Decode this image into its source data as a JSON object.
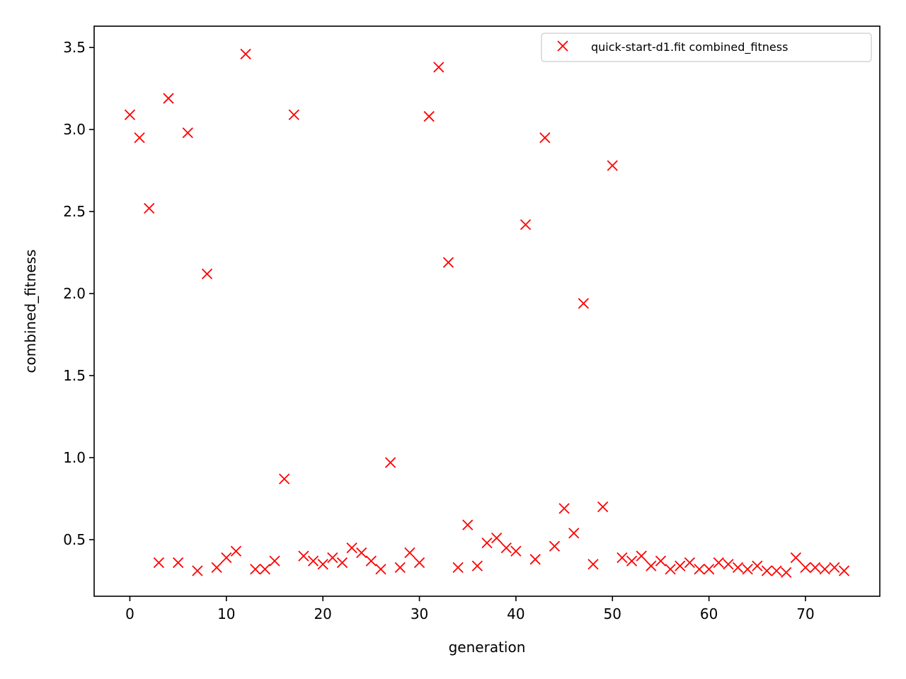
{
  "chart_data": {
    "type": "scatter",
    "xlabel": "generation",
    "ylabel": "combined_fitness",
    "xlim": [
      -3.7,
      77.7
    ],
    "ylim": [
      0.155,
      3.63
    ],
    "x_ticks": [
      0,
      10,
      20,
      30,
      40,
      50,
      60,
      70
    ],
    "x_tick_labels": [
      "0",
      "10",
      "20",
      "30",
      "40",
      "50",
      "60",
      "70"
    ],
    "y_ticks": [
      0.5,
      1.0,
      1.5,
      2.0,
      2.5,
      3.0,
      3.5
    ],
    "y_tick_labels": [
      "0.5",
      "1.0",
      "1.5",
      "2.0",
      "2.5",
      "3.0",
      "3.5"
    ],
    "grid": false,
    "legend_position": "top-right",
    "marker": "x",
    "color": "#ff0000",
    "series": [
      {
        "name": "quick-start-d1.fit combined_fitness",
        "points": [
          [
            0,
            3.09
          ],
          [
            1,
            2.95
          ],
          [
            2,
            2.52
          ],
          [
            3,
            0.36
          ],
          [
            4,
            3.19
          ],
          [
            5,
            0.36
          ],
          [
            6,
            2.98
          ],
          [
            7,
            0.31
          ],
          [
            8,
            2.12
          ],
          [
            9,
            0.33
          ],
          [
            10,
            0.39
          ],
          [
            11,
            0.43
          ],
          [
            12,
            3.46
          ],
          [
            13,
            0.32
          ],
          [
            14,
            0.32
          ],
          [
            15,
            0.37
          ],
          [
            16,
            0.87
          ],
          [
            17,
            3.09
          ],
          [
            18,
            0.4
          ],
          [
            19,
            0.37
          ],
          [
            20,
            0.35
          ],
          [
            21,
            0.39
          ],
          [
            22,
            0.36
          ],
          [
            23,
            0.45
          ],
          [
            24,
            0.42
          ],
          [
            25,
            0.37
          ],
          [
            26,
            0.32
          ],
          [
            27,
            0.97
          ],
          [
            28,
            0.33
          ],
          [
            29,
            0.42
          ],
          [
            30,
            0.36
          ],
          [
            31,
            3.08
          ],
          [
            32,
            3.38
          ],
          [
            33,
            2.19
          ],
          [
            34,
            0.33
          ],
          [
            35,
            0.59
          ],
          [
            36,
            0.34
          ],
          [
            37,
            0.48
          ],
          [
            38,
            0.51
          ],
          [
            39,
            0.45
          ],
          [
            40,
            0.43
          ],
          [
            41,
            2.42
          ],
          [
            42,
            0.38
          ],
          [
            43,
            2.95
          ],
          [
            44,
            0.46
          ],
          [
            45,
            0.69
          ],
          [
            46,
            0.54
          ],
          [
            47,
            1.94
          ],
          [
            48,
            0.35
          ],
          [
            49,
            0.7
          ],
          [
            50,
            2.78
          ],
          [
            51,
            0.39
          ],
          [
            52,
            0.37
          ],
          [
            53,
            0.4
          ],
          [
            54,
            0.34
          ],
          [
            55,
            0.37
          ],
          [
            56,
            0.32
          ],
          [
            57,
            0.34
          ],
          [
            58,
            0.36
          ],
          [
            59,
            0.32
          ],
          [
            60,
            0.32
          ],
          [
            61,
            0.36
          ],
          [
            62,
            0.35
          ],
          [
            63,
            0.33
          ],
          [
            64,
            0.32
          ],
          [
            65,
            0.34
          ],
          [
            66,
            0.31
          ],
          [
            67,
            0.31
          ],
          [
            68,
            0.3
          ],
          [
            69,
            0.39
          ],
          [
            70,
            0.33
          ],
          [
            71,
            0.33
          ],
          [
            72,
            0.32
          ],
          [
            73,
            0.33
          ],
          [
            74,
            0.31
          ]
        ]
      }
    ]
  }
}
